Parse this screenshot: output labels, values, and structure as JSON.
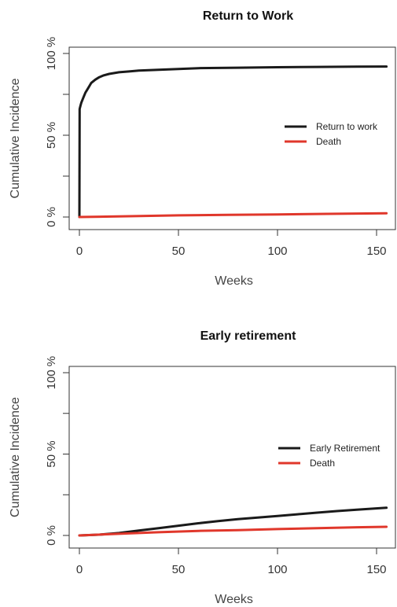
{
  "colors": {
    "series1": "#1a1a1a",
    "death": "#e0372b",
    "axis": "#333333"
  },
  "chart_data": [
    {
      "type": "line",
      "title": "Return to Work",
      "xlabel": "Weeks",
      "ylabel": "Cumulative Incidence",
      "xlim": [
        0,
        156
      ],
      "ylim": [
        0,
        100
      ],
      "xticks": [
        0,
        50,
        100,
        150
      ],
      "yticks": [
        0,
        50,
        100
      ],
      "ytick_labels": [
        "0 %",
        "50 %",
        "100 %"
      ],
      "legend_position": "right",
      "series": [
        {
          "name": "Return to work",
          "color": "#1a1a1a",
          "x": [
            0,
            0.1,
            0.5,
            1,
            2,
            3,
            4,
            5,
            6,
            8,
            10,
            12,
            15,
            20,
            25,
            30,
            40,
            50,
            60,
            80,
            100,
            120,
            140,
            155
          ],
          "y": [
            0,
            66,
            68,
            70,
            73,
            76,
            78,
            80,
            82,
            84,
            85.5,
            86.5,
            87.5,
            88.5,
            89,
            89.5,
            90,
            90.5,
            91,
            91.3,
            91.6,
            91.8,
            91.9,
            92
          ]
        },
        {
          "name": "Death",
          "color": "#e0372b",
          "x": [
            0,
            25,
            50,
            75,
            100,
            125,
            155
          ],
          "y": [
            0,
            0.5,
            1,
            1.3,
            1.6,
            1.9,
            2.3
          ]
        }
      ]
    },
    {
      "type": "line",
      "title": "Early retirement",
      "xlabel": "Weeks",
      "ylabel": "Cumulative Incidence",
      "xlim": [
        0,
        156
      ],
      "ylim": [
        0,
        100
      ],
      "xticks": [
        0,
        50,
        100,
        150
      ],
      "yticks": [
        0,
        50,
        100
      ],
      "ytick_labels": [
        "0 %",
        "50 %",
        "100 %"
      ],
      "legend_position": "right",
      "series": [
        {
          "name": "Early Retirement",
          "color": "#1a1a1a",
          "x": [
            0,
            10,
            20,
            30,
            40,
            50,
            60,
            70,
            80,
            90,
            100,
            110,
            120,
            130,
            140,
            155
          ],
          "y": [
            0,
            0.5,
            1.5,
            3,
            4.5,
            6,
            7.5,
            8.8,
            10,
            11,
            12,
            13,
            14,
            15,
            15.8,
            17
          ]
        },
        {
          "name": "Death",
          "color": "#e0372b",
          "x": [
            0,
            20,
            40,
            60,
            80,
            100,
            120,
            140,
            155
          ],
          "y": [
            0,
            1,
            2,
            2.8,
            3.3,
            3.9,
            4.5,
            5.0,
            5.3
          ]
        }
      ]
    }
  ]
}
